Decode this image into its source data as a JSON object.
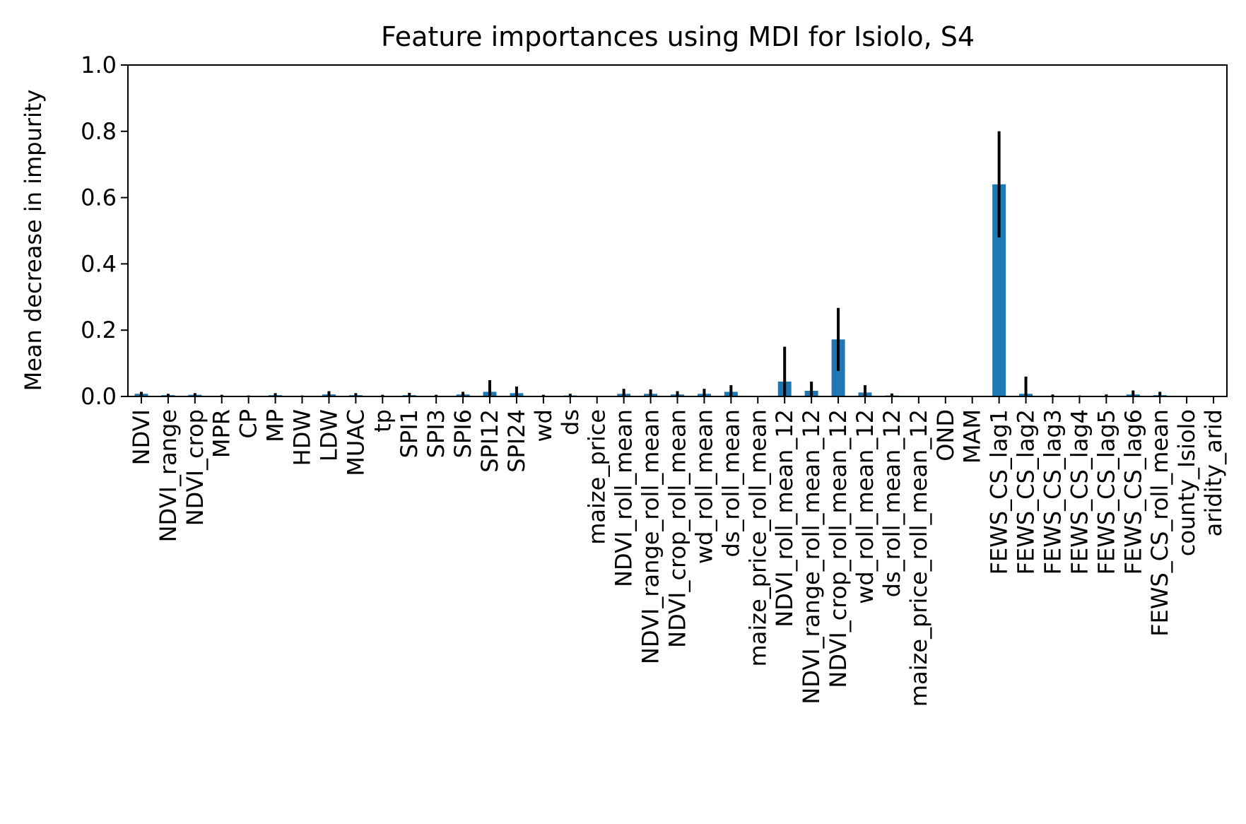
{
  "chart_data": {
    "type": "bar",
    "title": "Feature importances using MDI for Isiolo, S4",
    "xlabel": "",
    "ylabel": "Mean decrease in impurity",
    "ylim": [
      0,
      1.0
    ],
    "yticks": [
      "0.0",
      "0.2",
      "0.4",
      "0.6",
      "0.8",
      "1.0"
    ],
    "grid": false,
    "bar_color": "#1f77b4",
    "error_color": "#000000",
    "categories": [
      "NDVI",
      "NDVI_range",
      "NDVI_crop",
      "MPR",
      "CP",
      "MP",
      "HDW",
      "LDW",
      "MUAC",
      "tp",
      "SPI1",
      "SPI3",
      "SPI6",
      "SPI12",
      "SPI24",
      "wd",
      "ds",
      "maize_price",
      "NDVI_roll_mean",
      "NDVI_range_roll_mean",
      "NDVI_crop_roll_mean",
      "wd_roll_mean",
      "ds_roll_mean",
      "maize_price_roll_mean",
      "NDVI_roll_mean_12",
      "NDVI_range_roll_mean_12",
      "NDVI_crop_roll_mean_12",
      "wd_roll_mean_12",
      "ds_roll_mean_12",
      "maize_price_roll_mean_12",
      "OND",
      "MAM",
      "FEWS_CS_lag1",
      "FEWS_CS_lag2",
      "FEWS_CS_lag3",
      "FEWS_CS_lag4",
      "FEWS_CS_lag5",
      "FEWS_CS_lag6",
      "FEWS_CS_roll_mean",
      "county_Isiolo",
      "aridity_arid"
    ],
    "values": [
      0.008,
      0.004,
      0.005,
      0.002,
      0.001,
      0.004,
      0.001,
      0.006,
      0.004,
      0.002,
      0.004,
      0.002,
      0.006,
      0.014,
      0.01,
      0.002,
      0.003,
      0.0,
      0.008,
      0.008,
      0.006,
      0.008,
      0.014,
      0.0,
      0.045,
      0.017,
      0.172,
      0.012,
      0.003,
      0.0,
      0.0,
      0.0,
      0.64,
      0.008,
      0.002,
      0.001,
      0.002,
      0.006,
      0.004,
      0.0,
      0.0
    ],
    "errors": [
      0.006,
      0.004,
      0.005,
      0.003,
      0.002,
      0.006,
      0.002,
      0.01,
      0.006,
      0.003,
      0.007,
      0.003,
      0.008,
      0.035,
      0.02,
      0.003,
      0.005,
      0.001,
      0.015,
      0.013,
      0.01,
      0.015,
      0.02,
      0.0,
      0.105,
      0.028,
      0.095,
      0.022,
      0.006,
      0.0,
      0.0,
      0.0,
      0.16,
      0.052,
      0.004,
      0.002,
      0.004,
      0.012,
      0.01,
      0.0,
      0.0
    ]
  }
}
